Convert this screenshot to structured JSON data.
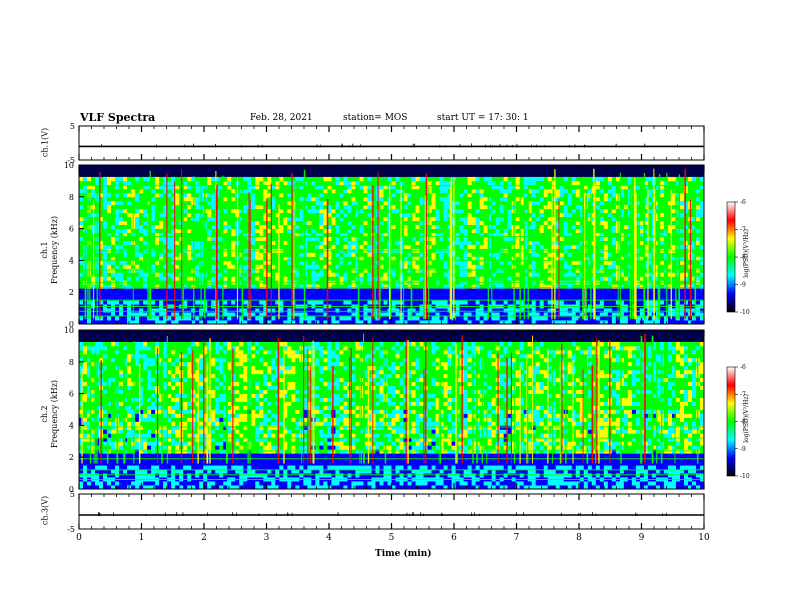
{
  "header": {
    "title": "VLF Spectra",
    "date": "Feb. 28, 2021",
    "station": "station= MOS",
    "start": "start  UT  =   17: 30: 1"
  },
  "panels": {
    "ch1_wave_label": "ch.1(V)",
    "ch1_spec_label_ch": "ch.1",
    "ch1_spec_label_freq": "Frequency (kHz)",
    "ch2_spec_label_ch": "ch.2",
    "ch2_spec_label_freq": "Frequency (kHz)",
    "ch3_wave_label": "ch.3(V)"
  },
  "colorbar": {
    "title": "log(PSD)(V²/Hz)",
    "ticks": [
      "-6",
      "-7",
      "-8",
      "-9",
      "-10"
    ],
    "colors": [
      "#ffffff",
      "#ff0000",
      "#ffff00",
      "#00ff00",
      "#00ffff",
      "#0000ff",
      "#000000"
    ]
  },
  "chart_data": [
    {
      "type": "line",
      "name": "ch1-waveform",
      "ylabel": "ch.1(V)",
      "ylim": [
        -5,
        5
      ],
      "yticks": [
        "5",
        "-5"
      ],
      "x": [
        0,
        10
      ],
      "values": [
        -1,
        -1
      ]
    },
    {
      "type": "heatmap",
      "name": "ch1-spectrogram",
      "ylabel": "ch.1 Frequency (kHz)",
      "ylim": [
        0,
        10
      ],
      "yticks": [
        "0",
        "2",
        "4",
        "6",
        "8",
        "10"
      ],
      "xlim": [
        0,
        10
      ],
      "colorbar_range": [
        -10,
        -6
      ]
    },
    {
      "type": "heatmap",
      "name": "ch2-spectrogram",
      "ylabel": "ch.2 Frequency (kHz)",
      "ylim": [
        0,
        10
      ],
      "yticks": [
        "0",
        "2",
        "4",
        "6",
        "8",
        "10"
      ],
      "xlim": [
        0,
        10
      ],
      "colorbar_range": [
        -10,
        -6
      ]
    },
    {
      "type": "line",
      "name": "ch3-waveform",
      "ylabel": "ch.3(V)",
      "ylim": [
        -5,
        5
      ],
      "yticks": [
        "5",
        "-5"
      ],
      "x": [
        0,
        10
      ],
      "values": [
        -1,
        -1
      ]
    }
  ],
  "xaxis": {
    "label": "Time  (min)",
    "ticks": [
      "0",
      "1",
      "2",
      "3",
      "4",
      "5",
      "6",
      "7",
      "8",
      "9",
      "10"
    ]
  }
}
